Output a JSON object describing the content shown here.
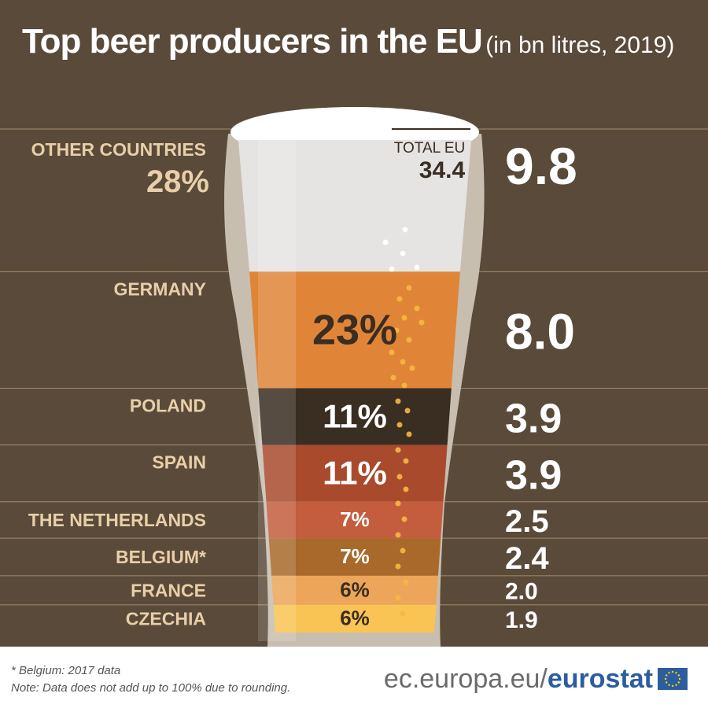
{
  "title": "Top beer producers in the EU",
  "subtitle": "(in bn litres, 2019)",
  "total": {
    "label": "TOTAL EU",
    "value": "34.4"
  },
  "footnotes": [
    "* Belgium: 2017 data",
    "Note: Data does not add up to 100% due to rounding."
  ],
  "brand": {
    "prefix": "ec.europa.eu/",
    "name": "eurostat"
  },
  "colors": {
    "background": "#5a4a3a",
    "label": "#e8cfa8",
    "divider": "#a28d6c",
    "foam": "#e7e6e4",
    "glass": "#c8beb0"
  },
  "chart_data": {
    "type": "bar",
    "title": "Top beer producers in the EU (in bn litres, 2019)",
    "categories": [
      "OTHER COUNTRIES",
      "GERMANY",
      "POLAND",
      "SPAIN",
      "THE NETHERLANDS",
      "BELGIUM*",
      "FRANCE",
      "CZECHIA"
    ],
    "values": [
      9.8,
      8.0,
      3.9,
      3.9,
      2.5,
      2.4,
      2.0,
      1.9
    ],
    "value_labels": [
      "9.8",
      "8.0",
      "3.9",
      "3.9",
      "2.5",
      "2.4",
      "2.0",
      "1.9"
    ],
    "shares": [
      "28%",
      "23%",
      "11%",
      "11%",
      "7%",
      "7%",
      "6%",
      "6%"
    ],
    "layer_colors": [
      "#e5e4e2",
      "#e08538",
      "#3a2d22",
      "#a94a2d",
      "#c35d3e",
      "#a8692a",
      "#eca559",
      "#f9c453"
    ],
    "total": 34.4,
    "unit": "bn litres"
  }
}
